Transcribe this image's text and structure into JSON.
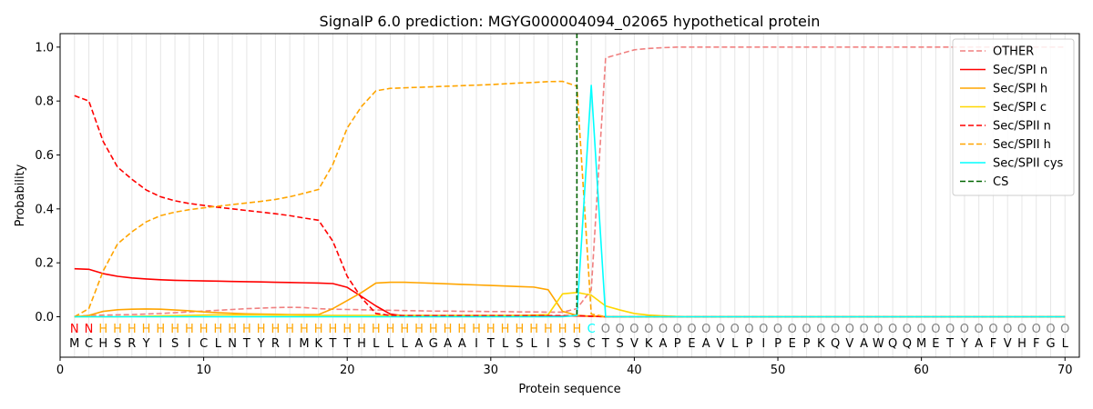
{
  "chart_data": {
    "type": "line",
    "title": "SignalP 6.0 prediction: MGYG000004094_02065 hypothetical protein",
    "xlabel": "Protein sequence",
    "ylabel": "Probability",
    "xlim": [
      0,
      71
    ],
    "ylim": [
      -0.15,
      1.05
    ],
    "xticks": [
      0,
      10,
      20,
      30,
      40,
      50,
      60,
      70
    ],
    "yticks": [
      0.0,
      0.2,
      0.4,
      0.6,
      0.8,
      1.0
    ],
    "ytick_labels": [
      "0.0",
      "0.2",
      "0.4",
      "0.6",
      "0.8",
      "1.0"
    ],
    "grid": "vertical lines at each residue",
    "legend_position": "top-right",
    "sequence": [
      "M",
      "C",
      "H",
      "S",
      "R",
      "Y",
      "I",
      "S",
      "I",
      "C",
      "L",
      "N",
      "T",
      "Y",
      "R",
      "I",
      "M",
      "K",
      "T",
      "T",
      "H",
      "L",
      "L",
      "L",
      "A",
      "G",
      "A",
      "A",
      "I",
      "T",
      "L",
      "S",
      "L",
      "I",
      "S",
      "S",
      "C",
      "T",
      "S",
      "V",
      "K",
      "A",
      "P",
      "E",
      "A",
      "V",
      "L",
      "P",
      "I",
      "P",
      "E",
      "P",
      "K",
      "Q",
      "V",
      "A",
      "W",
      "Q",
      "Q",
      "M",
      "E",
      "T",
      "Y",
      "A",
      "F",
      "V",
      "H",
      "F",
      "G",
      "L"
    ],
    "regions": [
      "N",
      "N",
      "H",
      "H",
      "H",
      "H",
      "H",
      "H",
      "H",
      "H",
      "H",
      "H",
      "H",
      "H",
      "H",
      "H",
      "H",
      "H",
      "H",
      "H",
      "H",
      "H",
      "H",
      "H",
      "H",
      "H",
      "H",
      "H",
      "H",
      "H",
      "H",
      "H",
      "H",
      "H",
      "H",
      "H",
      "C",
      "O",
      "O",
      "O",
      "O",
      "O",
      "O",
      "O",
      "O",
      "O",
      "O",
      "O",
      "O",
      "O",
      "O",
      "O",
      "O",
      "O",
      "O",
      "O",
      "O",
      "O",
      "O",
      "O",
      "O",
      "O",
      "O",
      "O",
      "O",
      "O",
      "O",
      "O",
      "O",
      "O"
    ],
    "region_colors": {
      "N": "#ff0000",
      "H": "#ffa500",
      "C": "#00ffff",
      "O": "#808080"
    },
    "cs_position": 36,
    "series": [
      {
        "name": "OTHER",
        "color": "#f08080",
        "dash": "dashed",
        "values": [
          0.0,
          0.005,
          0.006,
          0.007,
          0.008,
          0.01,
          0.012,
          0.015,
          0.018,
          0.021,
          0.024,
          0.027,
          0.03,
          0.032,
          0.034,
          0.035,
          0.034,
          0.03,
          0.028,
          0.027,
          0.026,
          0.025,
          0.024,
          0.023,
          0.022,
          0.021,
          0.021,
          0.02,
          0.02,
          0.019,
          0.019,
          0.018,
          0.018,
          0.017,
          0.017,
          0.03,
          0.1,
          0.96,
          0.975,
          0.99,
          0.995,
          0.998,
          1.0,
          1.0,
          1.0,
          1.0,
          1.0,
          1.0,
          1.0,
          1.0,
          1.0,
          1.0,
          1.0,
          1.0,
          1.0,
          1.0,
          1.0,
          1.0,
          1.0,
          1.0,
          1.0,
          1.0,
          1.0,
          1.0,
          1.0,
          1.0,
          1.0,
          1.0,
          1.0,
          1.0
        ]
      },
      {
        "name": "Sec/SPI n",
        "color": "#ff0000",
        "dash": "solid",
        "values": [
          0.178,
          0.176,
          0.16,
          0.15,
          0.144,
          0.14,
          0.137,
          0.135,
          0.134,
          0.133,
          0.132,
          0.131,
          0.13,
          0.129,
          0.128,
          0.127,
          0.126,
          0.125,
          0.123,
          0.109,
          0.075,
          0.04,
          0.01,
          0.003,
          0.002,
          0.002,
          0.002,
          0.002,
          0.002,
          0.002,
          0.002,
          0.002,
          0.002,
          0.002,
          0.002,
          0.003,
          0.002,
          0.0,
          0.0,
          0.0,
          0.0,
          0.0,
          0.0,
          0.0,
          0.0,
          0.0,
          0.0,
          0.0,
          0.0,
          0.0,
          0.0,
          0.0,
          0.0,
          0.0,
          0.0,
          0.0,
          0.0,
          0.0,
          0.0,
          0.0,
          0.0,
          0.0,
          0.0,
          0.0,
          0.0,
          0.0,
          0.0,
          0.0,
          0.0,
          0.0
        ]
      },
      {
        "name": "Sec/SPI h",
        "color": "#ffa500",
        "dash": "solid",
        "values": [
          0.0,
          0.005,
          0.02,
          0.026,
          0.028,
          0.029,
          0.028,
          0.025,
          0.022,
          0.018,
          0.015,
          0.013,
          0.011,
          0.01,
          0.009,
          0.008,
          0.008,
          0.008,
          0.03,
          0.06,
          0.09,
          0.125,
          0.128,
          0.128,
          0.126,
          0.124,
          0.122,
          0.12,
          0.118,
          0.116,
          0.114,
          0.112,
          0.11,
          0.1,
          0.02,
          0.005,
          0.002,
          0.0,
          0.0,
          0.0,
          0.0,
          0.0,
          0.0,
          0.0,
          0.0,
          0.0,
          0.0,
          0.0,
          0.0,
          0.0,
          0.0,
          0.0,
          0.0,
          0.0,
          0.0,
          0.0,
          0.0,
          0.0,
          0.0,
          0.0,
          0.0,
          0.0,
          0.0,
          0.0,
          0.0,
          0.0,
          0.0,
          0.0,
          0.0,
          0.0
        ]
      },
      {
        "name": "Sec/SPI c",
        "color": "#ffd700",
        "dash": "solid",
        "values": [
          0.0,
          0.0,
          0.0,
          0.0,
          0.001,
          0.002,
          0.003,
          0.004,
          0.005,
          0.006,
          0.007,
          0.007,
          0.007,
          0.007,
          0.006,
          0.006,
          0.005,
          0.005,
          0.005,
          0.005,
          0.005,
          0.005,
          0.005,
          0.005,
          0.005,
          0.005,
          0.005,
          0.005,
          0.005,
          0.005,
          0.005,
          0.005,
          0.006,
          0.008,
          0.085,
          0.09,
          0.08,
          0.04,
          0.025,
          0.012,
          0.006,
          0.003,
          0.001,
          0.0,
          0.0,
          0.0,
          0.0,
          0.0,
          0.0,
          0.0,
          0.0,
          0.0,
          0.0,
          0.0,
          0.0,
          0.0,
          0.0,
          0.0,
          0.0,
          0.0,
          0.0,
          0.0,
          0.0,
          0.0,
          0.0,
          0.0,
          0.0,
          0.0,
          0.0,
          0.0
        ]
      },
      {
        "name": "Sec/SPII n",
        "color": "#ff0000",
        "dash": "dashed",
        "values": [
          0.82,
          0.8,
          0.65,
          0.555,
          0.51,
          0.47,
          0.445,
          0.43,
          0.42,
          0.413,
          0.406,
          0.4,
          0.394,
          0.388,
          0.382,
          0.375,
          0.366,
          0.358,
          0.28,
          0.15,
          0.07,
          0.012,
          0.005,
          0.004,
          0.004,
          0.004,
          0.004,
          0.004,
          0.004,
          0.004,
          0.004,
          0.004,
          0.004,
          0.004,
          0.004,
          0.004,
          0.002,
          0.0,
          0.0,
          0.0,
          0.0,
          0.0,
          0.0,
          0.0,
          0.0,
          0.0,
          0.0,
          0.0,
          0.0,
          0.0,
          0.0,
          0.0,
          0.0,
          0.0,
          0.0,
          0.0,
          0.0,
          0.0,
          0.0,
          0.0,
          0.0,
          0.0,
          0.0,
          0.0,
          0.0,
          0.0,
          0.0,
          0.0,
          0.0,
          0.0
        ]
      },
      {
        "name": "Sec/SPII h",
        "color": "#ffa500",
        "dash": "dashed",
        "values": [
          0.0,
          0.03,
          0.17,
          0.27,
          0.315,
          0.352,
          0.375,
          0.388,
          0.397,
          0.404,
          0.41,
          0.416,
          0.422,
          0.428,
          0.435,
          0.445,
          0.458,
          0.472,
          0.565,
          0.7,
          0.78,
          0.838,
          0.847,
          0.849,
          0.851,
          0.853,
          0.855,
          0.857,
          0.859,
          0.861,
          0.864,
          0.867,
          0.869,
          0.872,
          0.873,
          0.855,
          0.01,
          0.0,
          0.0,
          0.0,
          0.0,
          0.0,
          0.0,
          0.0,
          0.0,
          0.0,
          0.0,
          0.0,
          0.0,
          0.0,
          0.0,
          0.0,
          0.0,
          0.0,
          0.0,
          0.0,
          0.0,
          0.0,
          0.0,
          0.0,
          0.0,
          0.0,
          0.0,
          0.0,
          0.0,
          0.0,
          0.0,
          0.0,
          0.0,
          0.0
        ]
      },
      {
        "name": "Sec/SPII cys",
        "color": "#00ffff",
        "dash": "solid",
        "values": [
          0.0,
          0.0,
          0.0,
          0.0,
          0.0,
          0.0,
          0.0,
          0.0,
          0.0,
          0.0,
          0.0,
          0.0,
          0.0,
          0.0,
          0.0,
          0.0,
          0.0,
          0.0,
          0.0,
          0.0,
          0.0,
          0.0,
          0.0,
          0.0,
          0.0,
          0.0,
          0.0,
          0.0,
          0.0,
          0.0,
          0.0,
          0.0,
          0.0,
          0.0,
          0.0,
          0.005,
          0.858,
          0.0,
          0.0,
          0.0,
          0.0,
          0.0,
          0.0,
          0.0,
          0.0,
          0.0,
          0.0,
          0.0,
          0.0,
          0.0,
          0.0,
          0.0,
          0.0,
          0.0,
          0.0,
          0.0,
          0.0,
          0.0,
          0.0,
          0.0,
          0.0,
          0.0,
          0.0,
          0.0,
          0.0,
          0.0,
          0.0,
          0.0,
          0.0,
          0.0
        ]
      }
    ],
    "legend": [
      {
        "name": "OTHER",
        "color": "#f08080",
        "dash": "dashed"
      },
      {
        "name": "Sec/SPI n",
        "color": "#ff0000",
        "dash": "solid"
      },
      {
        "name": "Sec/SPI h",
        "color": "#ffa500",
        "dash": "solid"
      },
      {
        "name": "Sec/SPI c",
        "color": "#ffd700",
        "dash": "solid"
      },
      {
        "name": "Sec/SPII n",
        "color": "#ff0000",
        "dash": "dashed"
      },
      {
        "name": "Sec/SPII h",
        "color": "#ffa500",
        "dash": "dashed"
      },
      {
        "name": "Sec/SPII cys",
        "color": "#00ffff",
        "dash": "solid"
      },
      {
        "name": "CS",
        "color": "#006400",
        "dash": "dashed"
      }
    ]
  }
}
